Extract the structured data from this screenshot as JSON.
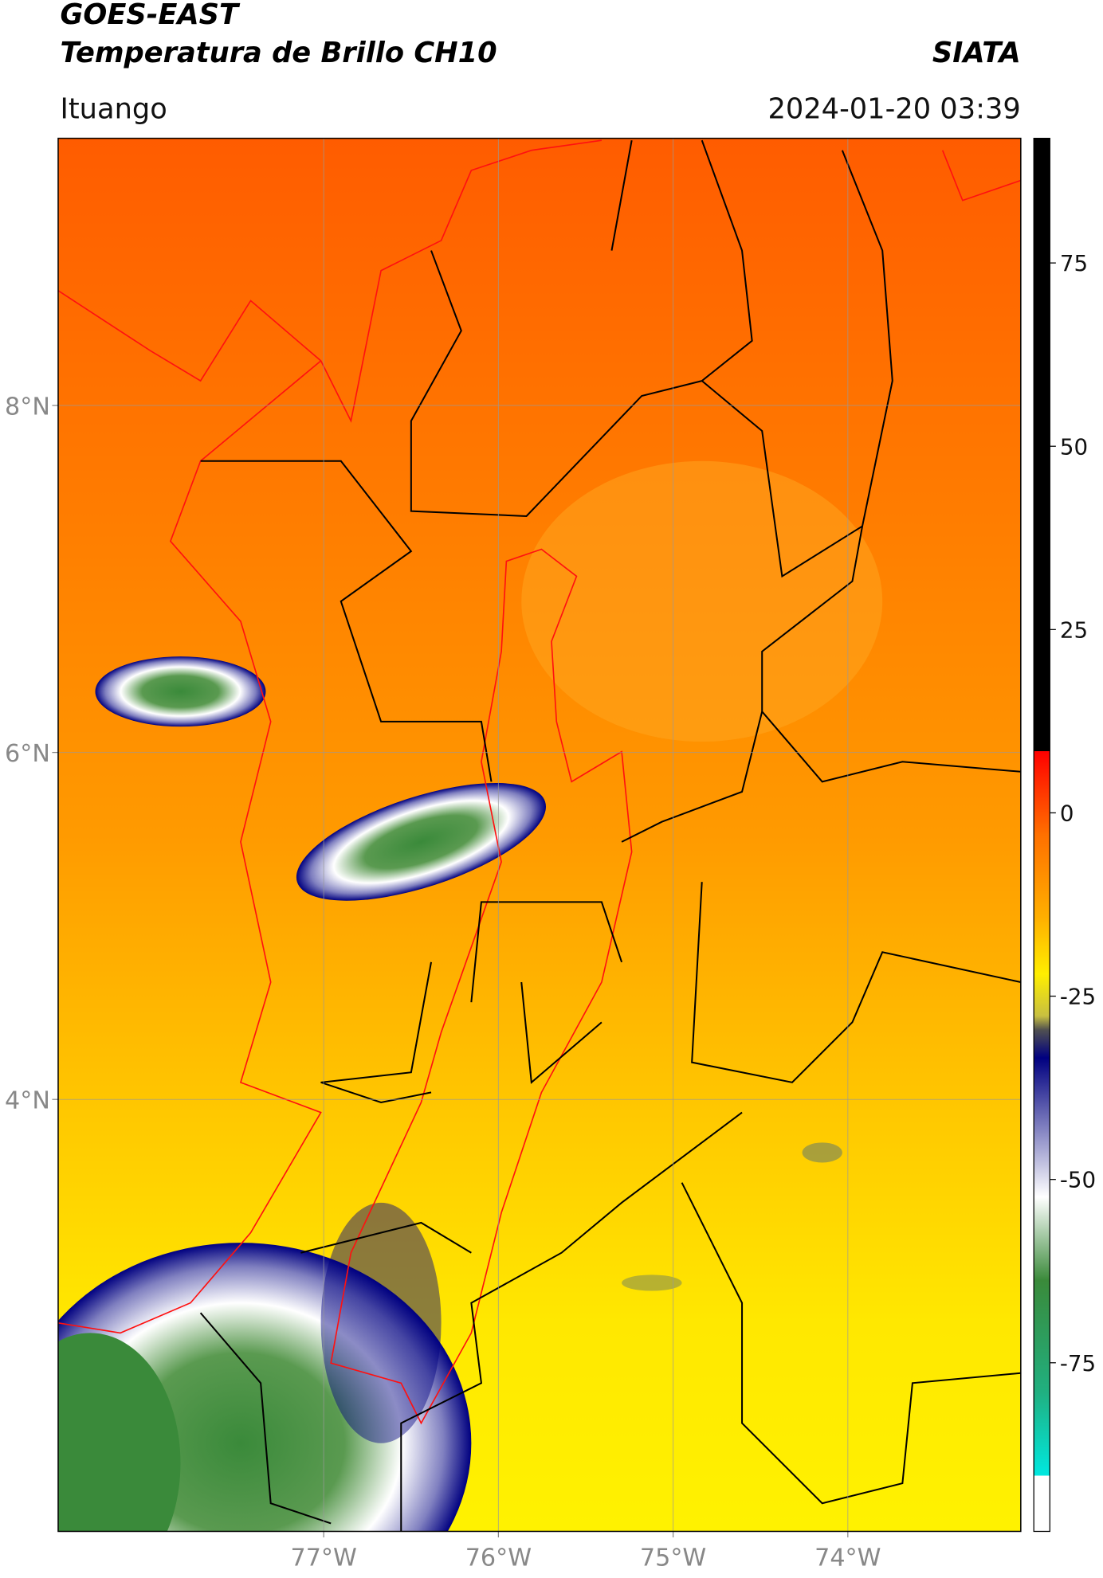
{
  "header": {
    "title": "GOES-EAST",
    "subtitle": "Temperatura de Brillo CH10",
    "brand": "SIATA",
    "location": "Ituango",
    "datetime": "2024-01-20 03:39"
  },
  "map": {
    "latlim": [
      1.51,
      9.54
    ],
    "lonlim": [
      -78.52,
      -73.01
    ],
    "latticks": [
      {
        "value": 8,
        "label": "8°N"
      },
      {
        "value": 6,
        "label": "6°N"
      },
      {
        "value": 4,
        "label": "4°N"
      }
    ],
    "lonticks": [
      {
        "value": -77,
        "label": "77°W"
      },
      {
        "value": -76,
        "label": "76°W"
      },
      {
        "value": -75,
        "label": "75°W"
      },
      {
        "value": -74,
        "label": "74°W"
      }
    ],
    "grid": true
  },
  "colorbar": {
    "lim": [
      -98,
      92
    ],
    "ticks": [
      75,
      50,
      25,
      0,
      -25,
      -50,
      -75
    ]
  }
}
